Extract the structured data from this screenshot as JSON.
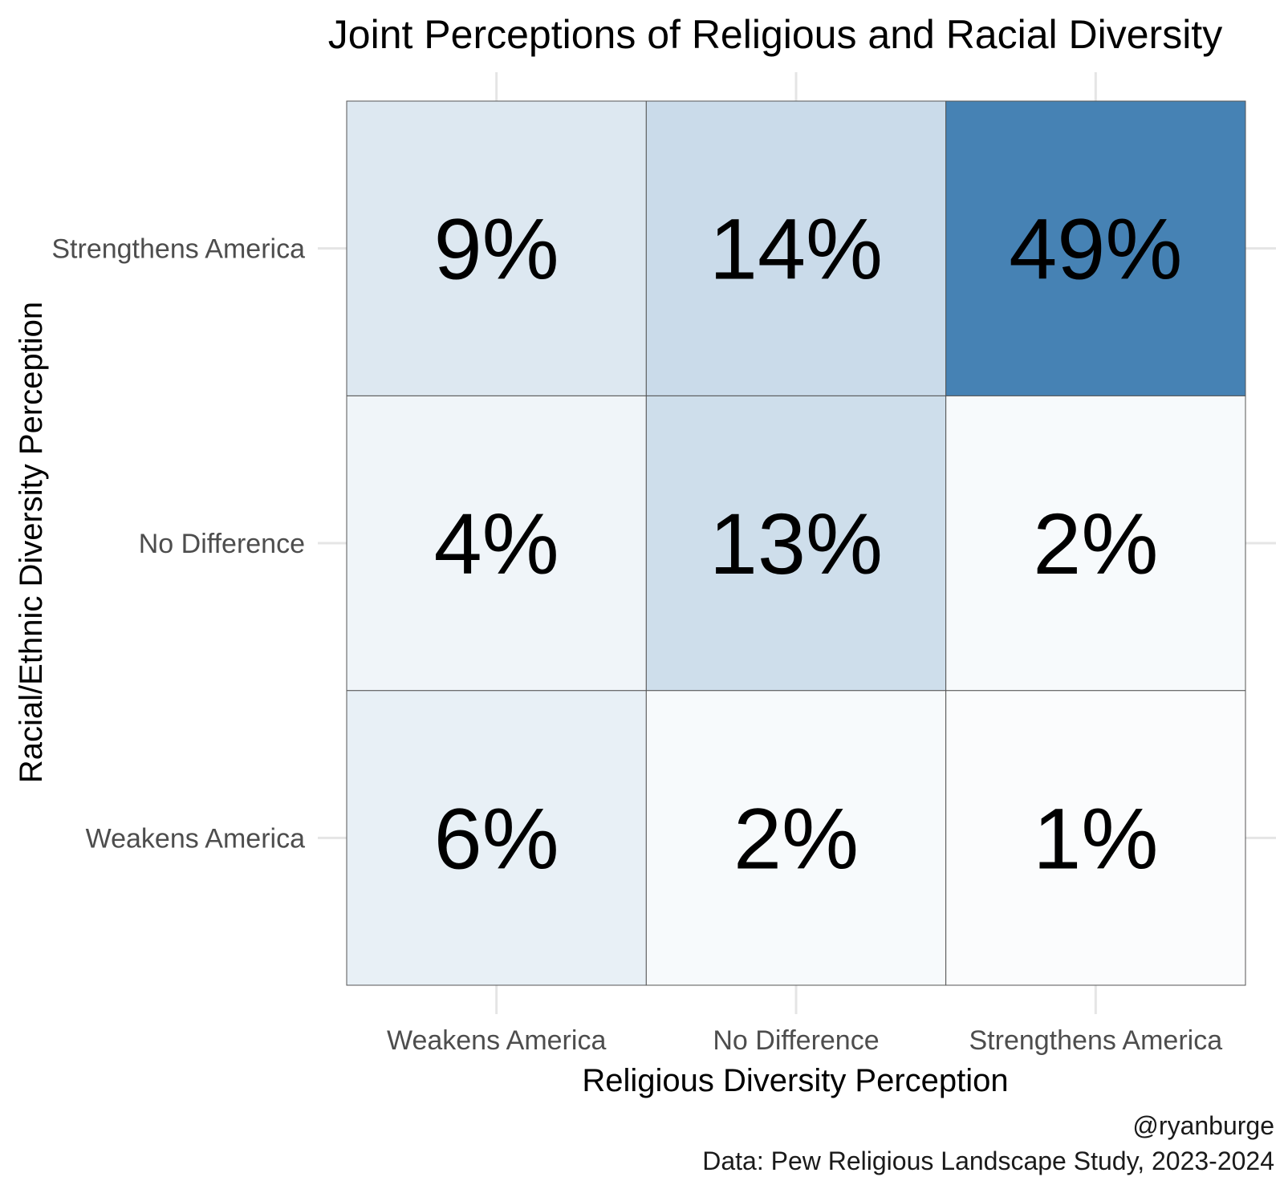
{
  "chart_data": {
    "type": "heatmap",
    "title": "Joint Perceptions of Religious and Racial Diversity",
    "xlabel": "Religious Diversity Perception",
    "ylabel": "Racial/Ethnic Diversity Perception",
    "x_categories": [
      "Weakens America",
      "No Difference",
      "Strengthens America"
    ],
    "y_categories": [
      "Weakens America",
      "No Difference",
      "Strengthens America"
    ],
    "values": [
      [
        6,
        2,
        1
      ],
      [
        4,
        13,
        2
      ],
      [
        9,
        14,
        49
      ]
    ],
    "value_suffix": "%",
    "color_scale": {
      "low": "#ffffff",
      "high": "#4682b4"
    },
    "grid": true,
    "legend": "none"
  },
  "caption": {
    "author": "@ryanburge",
    "source": "Data: Pew Religious Landscape Study, 2023-2024"
  }
}
